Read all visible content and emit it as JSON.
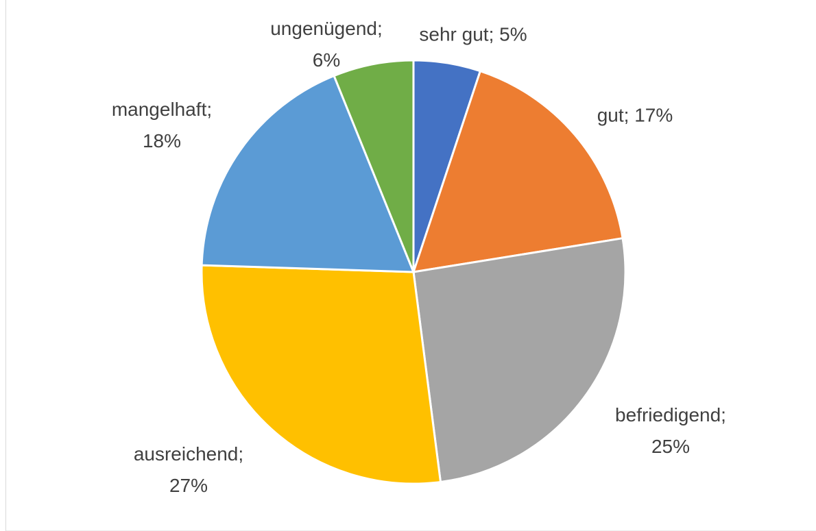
{
  "chart_data": {
    "type": "pie",
    "values": [
      5,
      17,
      25,
      27,
      18,
      6
    ],
    "value_labels": [
      "sehr gut; 5%",
      "gut; 17%",
      "befriedigend; 25%",
      "ausreichend; 27%",
      "mangelhaft; 18%",
      "ungenügend; 6%"
    ],
    "colors": [
      "#4472c4",
      "#ed7d31",
      "#a5a5a5",
      "#ffc000",
      "#5b9bd5",
      "#70ad47"
    ]
  }
}
